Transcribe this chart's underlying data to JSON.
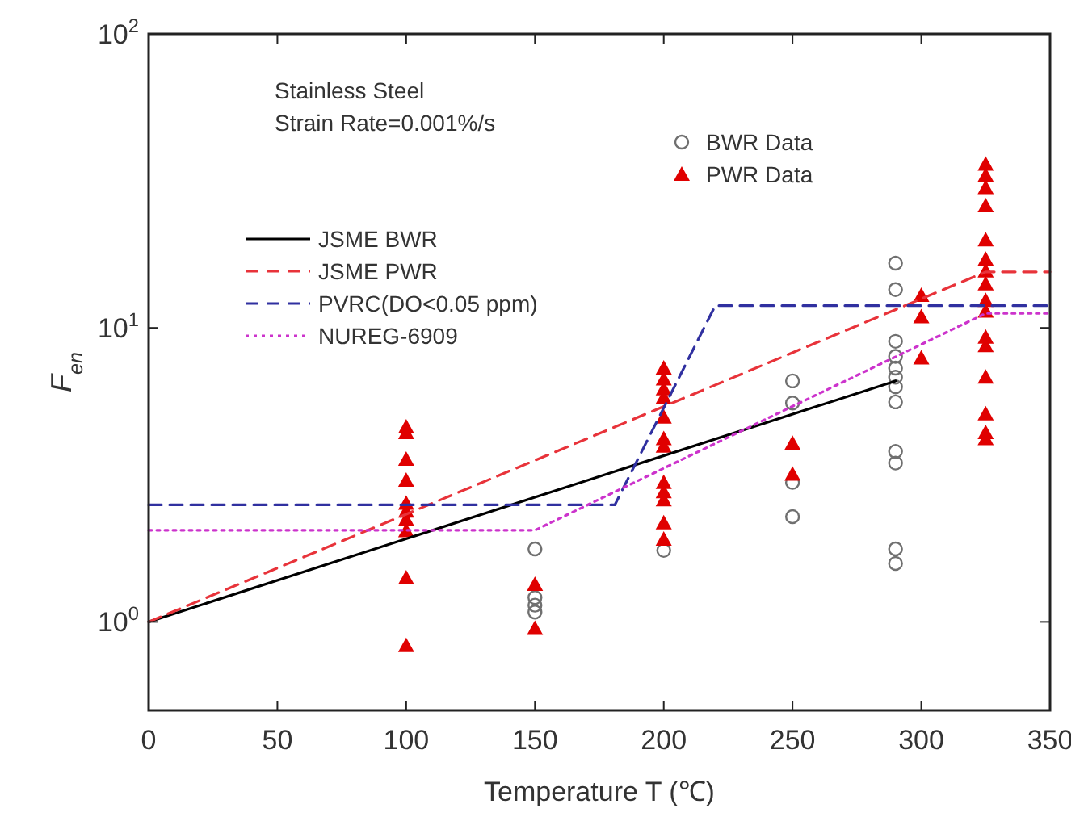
{
  "chart_data": {
    "type": "scatter",
    "xlabel": "Temperature T (℃)",
    "ylabel": "F$_{en}$",
    "log": "y",
    "xlim": [
      0,
      350
    ],
    "xticks": [
      0,
      50,
      100,
      150,
      200,
      250,
      300,
      350
    ],
    "ylim": [
      0.5,
      100
    ],
    "yticks": [
      {
        "value": 1,
        "label": "10$^{0}$"
      },
      {
        "value": 10,
        "label": "10$^{1}$"
      },
      {
        "value": 100,
        "label": "10$^{2}$"
      }
    ],
    "grid": false,
    "legend": "top",
    "annotations": [
      "Stainless Steel",
      "Strain Rate=0.001%/s"
    ],
    "series": [
      {
        "name": "BWR Data",
        "marker": "circle",
        "color": "#707070",
        "x": [
          150,
          150,
          150,
          150,
          200,
          250,
          250,
          250,
          250,
          290,
          290,
          290,
          290,
          290,
          290,
          290,
          290,
          290,
          290,
          290,
          290
        ],
        "values": [
          1.77,
          1.21,
          1.14,
          1.08,
          1.75,
          6.6,
          5.55,
          2.98,
          2.28,
          16.6,
          13.5,
          9.0,
          8.0,
          7.3,
          6.8,
          6.3,
          5.6,
          3.8,
          3.47,
          1.77,
          1.58
        ]
      },
      {
        "name": "PWR Data",
        "marker": "triangle",
        "color": "#e00000",
        "x": [
          100,
          100,
          100,
          100,
          100,
          100,
          100,
          100,
          100,
          100,
          150,
          150,
          200,
          200,
          200,
          200,
          200,
          200,
          200,
          200,
          200,
          200,
          200,
          200,
          250,
          250,
          300,
          300,
          300,
          325,
          325,
          325,
          325,
          325,
          325,
          325,
          325,
          325,
          325,
          325,
          325,
          325,
          325,
          325,
          325
        ],
        "values": [
          4.6,
          4.4,
          3.57,
          3.03,
          2.53,
          2.38,
          2.23,
          2.04,
          1.41,
          0.83,
          1.34,
          0.95,
          7.3,
          6.7,
          6.2,
          5.8,
          4.97,
          4.2,
          3.96,
          2.98,
          2.77,
          2.6,
          2.17,
          1.91,
          4.05,
          3.18,
          12.9,
          10.9,
          7.9,
          36,
          33,
          30,
          26,
          19.9,
          17.1,
          15.6,
          14.1,
          12.4,
          11.4,
          9.3,
          8.7,
          6.8,
          5.1,
          4.4,
          4.2
        ]
      },
      {
        "name": "JSME BWR",
        "type": "line",
        "line_style": "solid",
        "color": "#000000",
        "x": [
          0,
          290
        ],
        "values": [
          1,
          6.6
        ]
      },
      {
        "name": "JSME PWR",
        "type": "line",
        "line_style": "dashed",
        "color": "#e8333a",
        "x": [
          0,
          325,
          350
        ],
        "values": [
          1,
          15.5,
          15.5
        ]
      },
      {
        "name": "PVRC(DO<0.05 ppm)",
        "type": "line",
        "line_style": "dashed",
        "color": "#3030a0",
        "x": [
          0,
          181,
          220,
          350
        ],
        "values": [
          2.5,
          2.5,
          11.9,
          11.9
        ]
      },
      {
        "name": "NUREG-6909",
        "type": "line",
        "line_style": "dotted",
        "color": "#cc33cc",
        "x": [
          0,
          150,
          325,
          350
        ],
        "values": [
          2.05,
          2.05,
          11.2,
          11.2
        ]
      }
    ]
  }
}
